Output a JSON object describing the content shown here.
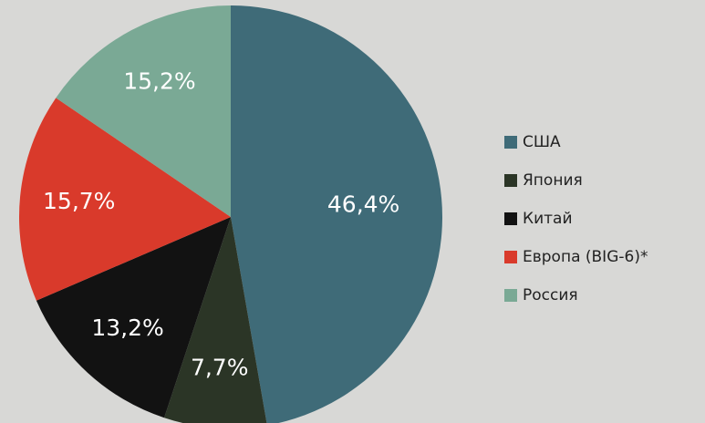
{
  "chart_data": {
    "type": "pie",
    "categories": [
      "США",
      "Япония",
      "Китай",
      "Европа (BIG-6)*",
      "Россия"
    ],
    "values": [
      46.4,
      7.7,
      13.2,
      15.7,
      15.2
    ],
    "value_labels": [
      "46,4%",
      "7,7%",
      "13,2%",
      "15,7%",
      "15,2%"
    ],
    "colors": [
      "#3f6b78",
      "#2b3526",
      "#121212",
      "#d93a2b",
      "#7aa995"
    ]
  }
}
